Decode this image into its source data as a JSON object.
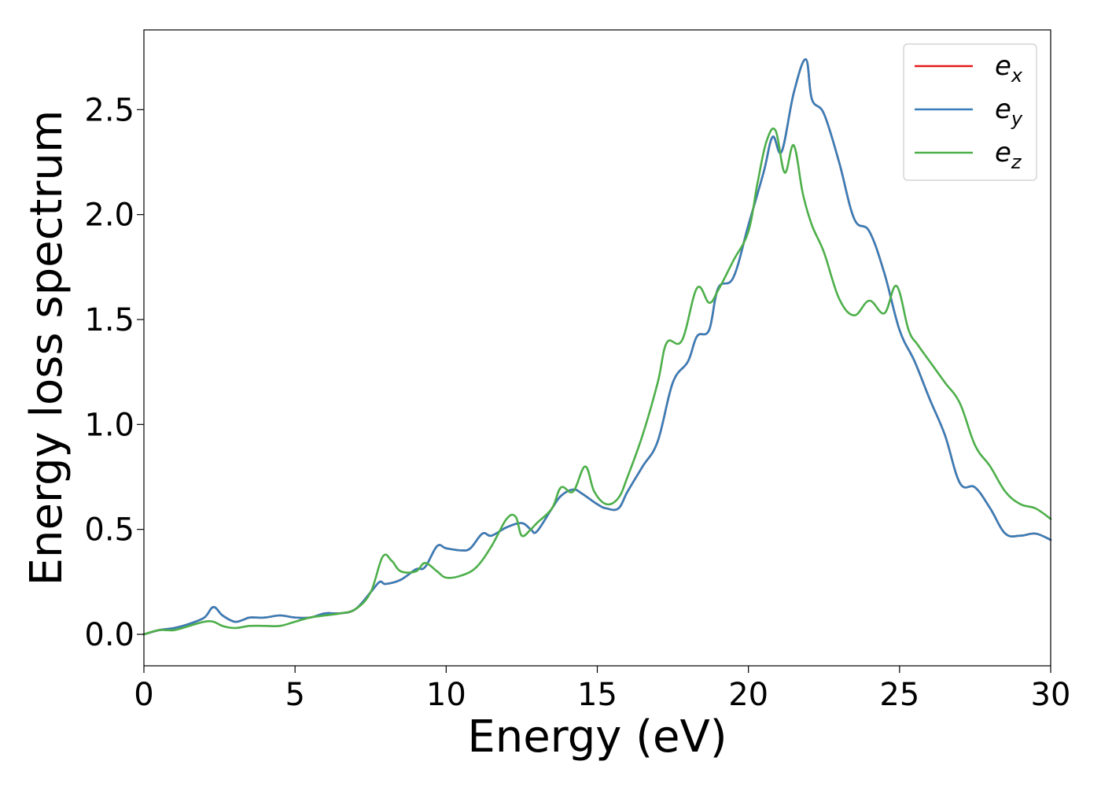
{
  "chart_data": {
    "type": "line",
    "title": "",
    "xlabel": "Energy (eV)",
    "ylabel": "Energy loss spectrum",
    "xlim": [
      0,
      30
    ],
    "ylim": [
      -0.15,
      2.88
    ],
    "xticks": [
      0,
      5,
      10,
      15,
      20,
      25,
      30
    ],
    "xtick_labels": [
      "0",
      "5",
      "10",
      "15",
      "20",
      "25",
      "30"
    ],
    "yticks": [
      0.0,
      0.5,
      1.0,
      1.5,
      2.0,
      2.5
    ],
    "ytick_labels": [
      "0.0",
      "0.5",
      "1.0",
      "1.5",
      "2.0",
      "2.5"
    ],
    "grid": false,
    "legend_position": "top-right",
    "legend": [
      {
        "base": "e",
        "sub": "x",
        "color": "#e41a1c"
      },
      {
        "base": "e",
        "sub": "y",
        "color": "#377eb8"
      },
      {
        "base": "e",
        "sub": "z",
        "color": "#4daf4a"
      }
    ],
    "series": [
      {
        "name": "e_x",
        "color": "#e41a1c",
        "x": [
          0,
          0.5,
          1,
          1.5,
          2,
          2.3,
          2.6,
          3,
          3.3,
          3.5,
          4,
          4.5,
          5,
          5.5,
          6,
          6.5,
          7,
          7.5,
          7.8,
          8,
          8.5,
          9,
          9.3,
          9.7,
          10,
          10.5,
          10.8,
          11.2,
          11.5,
          12,
          12.5,
          12.8,
          13,
          13.5,
          13.8,
          14.2,
          14.5,
          15,
          15.3,
          15.7,
          16,
          16.5,
          17,
          17.5,
          18,
          18.3,
          18.7,
          19,
          19.5,
          20,
          20.5,
          20.8,
          21.1,
          21.5,
          21.9,
          22.1,
          22.5,
          23,
          23.5,
          24,
          24.5,
          25,
          25.5,
          26,
          26.5,
          27,
          27.5,
          28,
          28.5,
          29,
          29.5,
          30
        ],
        "y": [
          0.0,
          0.02,
          0.03,
          0.05,
          0.08,
          0.13,
          0.09,
          0.06,
          0.07,
          0.08,
          0.08,
          0.09,
          0.08,
          0.08,
          0.1,
          0.1,
          0.12,
          0.2,
          0.25,
          0.24,
          0.26,
          0.31,
          0.32,
          0.42,
          0.41,
          0.4,
          0.41,
          0.48,
          0.47,
          0.51,
          0.53,
          0.5,
          0.49,
          0.6,
          0.66,
          0.69,
          0.67,
          0.62,
          0.6,
          0.6,
          0.68,
          0.8,
          0.92,
          1.2,
          1.3,
          1.42,
          1.45,
          1.65,
          1.7,
          1.95,
          2.2,
          2.37,
          2.3,
          2.58,
          2.74,
          2.55,
          2.48,
          2.25,
          1.98,
          1.92,
          1.72,
          1.45,
          1.3,
          1.12,
          0.95,
          0.72,
          0.7,
          0.6,
          0.48,
          0.47,
          0.48,
          0.45
        ]
      },
      {
        "name": "e_y",
        "color": "#377eb8",
        "x": [
          0,
          0.5,
          1,
          1.5,
          2,
          2.3,
          2.6,
          3,
          3.3,
          3.5,
          4,
          4.5,
          5,
          5.5,
          6,
          6.5,
          7,
          7.5,
          7.8,
          8,
          8.5,
          9,
          9.3,
          9.7,
          10,
          10.5,
          10.8,
          11.2,
          11.5,
          12,
          12.5,
          12.8,
          13,
          13.5,
          13.8,
          14.2,
          14.5,
          15,
          15.3,
          15.7,
          16,
          16.5,
          17,
          17.5,
          18,
          18.3,
          18.7,
          19,
          19.5,
          20,
          20.5,
          20.8,
          21.1,
          21.5,
          21.9,
          22.1,
          22.5,
          23,
          23.5,
          24,
          24.5,
          25,
          25.5,
          26,
          26.5,
          27,
          27.5,
          28,
          28.5,
          29,
          29.5,
          30
        ],
        "y": [
          0.0,
          0.02,
          0.03,
          0.05,
          0.08,
          0.13,
          0.09,
          0.06,
          0.07,
          0.08,
          0.08,
          0.09,
          0.08,
          0.08,
          0.1,
          0.1,
          0.12,
          0.2,
          0.25,
          0.24,
          0.26,
          0.31,
          0.32,
          0.42,
          0.41,
          0.4,
          0.41,
          0.48,
          0.47,
          0.51,
          0.53,
          0.5,
          0.49,
          0.6,
          0.66,
          0.69,
          0.67,
          0.62,
          0.6,
          0.6,
          0.68,
          0.8,
          0.92,
          1.2,
          1.3,
          1.42,
          1.45,
          1.65,
          1.7,
          1.95,
          2.2,
          2.37,
          2.3,
          2.58,
          2.74,
          2.55,
          2.48,
          2.25,
          1.98,
          1.92,
          1.72,
          1.45,
          1.3,
          1.12,
          0.95,
          0.72,
          0.7,
          0.6,
          0.48,
          0.47,
          0.48,
          0.45
        ]
      },
      {
        "name": "e_z",
        "color": "#4daf4a",
        "x": [
          0,
          0.5,
          1,
          1.5,
          2,
          2.3,
          2.6,
          3,
          3.5,
          4,
          4.5,
          5,
          5.5,
          6,
          6.5,
          7,
          7.5,
          7.9,
          8.2,
          8.5,
          9,
          9.3,
          9.7,
          10,
          10.5,
          11,
          11.5,
          12,
          12.3,
          12.5,
          12.8,
          13,
          13.5,
          13.8,
          14.2,
          14.6,
          14.9,
          15.3,
          15.7,
          16,
          16.5,
          17,
          17.3,
          17.8,
          18.3,
          18.7,
          19,
          19.5,
          20,
          20.3,
          20.6,
          20.9,
          21.2,
          21.5,
          21.8,
          22.1,
          22.5,
          23,
          23.5,
          24,
          24.5,
          24.9,
          25.3,
          25.6,
          26,
          26.5,
          27,
          27.5,
          28,
          28.5,
          29,
          29.5,
          30
        ],
        "y": [
          0.0,
          0.02,
          0.02,
          0.04,
          0.06,
          0.06,
          0.04,
          0.03,
          0.04,
          0.04,
          0.04,
          0.06,
          0.08,
          0.09,
          0.1,
          0.12,
          0.2,
          0.37,
          0.35,
          0.3,
          0.3,
          0.34,
          0.3,
          0.27,
          0.28,
          0.32,
          0.42,
          0.55,
          0.56,
          0.47,
          0.5,
          0.53,
          0.6,
          0.7,
          0.68,
          0.8,
          0.68,
          0.62,
          0.65,
          0.75,
          0.95,
          1.2,
          1.39,
          1.4,
          1.65,
          1.58,
          1.64,
          1.78,
          1.92,
          2.15,
          2.35,
          2.4,
          2.2,
          2.33,
          2.1,
          1.95,
          1.82,
          1.6,
          1.52,
          1.59,
          1.53,
          1.66,
          1.45,
          1.38,
          1.3,
          1.2,
          1.1,
          0.9,
          0.8,
          0.68,
          0.62,
          0.6,
          0.55
        ]
      }
    ]
  }
}
